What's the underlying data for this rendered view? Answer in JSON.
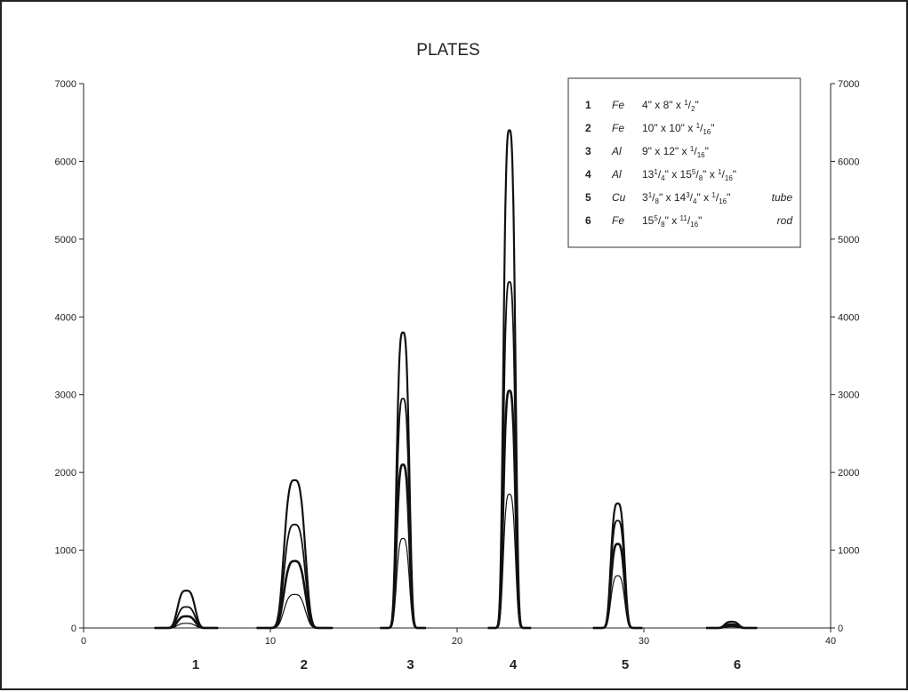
{
  "chart_data": {
    "type": "line",
    "title": "PLATES",
    "xlabel": "",
    "ylabel": "",
    "xlim": [
      0,
      40
    ],
    "ylim": [
      0,
      7000
    ],
    "x_ticks": [
      0,
      10,
      20,
      30,
      40
    ],
    "y_ticks": [
      0,
      1000,
      2000,
      3000,
      4000,
      5000,
      6000,
      7000
    ],
    "y2_ticks": [
      0,
      1000,
      2000,
      3000,
      4000,
      5000,
      6000,
      7000
    ],
    "grid": false,
    "legend_position": "top-right",
    "legend": [
      {
        "num": "1",
        "element": "Fe",
        "desc": [
          [
            "4\" x 8\" x ",
            ""
          ],
          [
            "1",
            "sup"
          ],
          [
            "/",
            ""
          ],
          [
            "2",
            "sub"
          ],
          [
            "\"",
            ""
          ]
        ],
        "extra": ""
      },
      {
        "num": "2",
        "element": "Fe",
        "desc": [
          [
            "10\" x 10\" x ",
            ""
          ],
          [
            "1",
            "sup"
          ],
          [
            "/",
            ""
          ],
          [
            "16",
            "sub"
          ],
          [
            "\"",
            ""
          ]
        ],
        "extra": ""
      },
      {
        "num": "3",
        "element": "Al",
        "desc": [
          [
            "9\" x 12\" x ",
            ""
          ],
          [
            "1",
            "sup"
          ],
          [
            "/",
            ""
          ],
          [
            "16",
            "sub"
          ],
          [
            "\"",
            ""
          ]
        ],
        "extra": ""
      },
      {
        "num": "4",
        "element": "Al",
        "desc": [
          [
            "13",
            ""
          ],
          [
            "1",
            "sup"
          ],
          [
            "/",
            ""
          ],
          [
            "4",
            "sub"
          ],
          [
            "\" x 15",
            ""
          ],
          [
            "5",
            "sup"
          ],
          [
            "/",
            ""
          ],
          [
            "8",
            "sub"
          ],
          [
            "\" x ",
            ""
          ],
          [
            "1",
            "sup"
          ],
          [
            "/",
            ""
          ],
          [
            "16",
            "sub"
          ],
          [
            "\"",
            ""
          ]
        ],
        "extra": ""
      },
      {
        "num": "5",
        "element": "Cu",
        "desc": [
          [
            "3",
            ""
          ],
          [
            "1",
            "sup"
          ],
          [
            "/",
            ""
          ],
          [
            "8",
            "sub"
          ],
          [
            "\" x 14",
            ""
          ],
          [
            "3",
            "sup"
          ],
          [
            "/",
            ""
          ],
          [
            "4",
            "sub"
          ],
          [
            "\" x ",
            ""
          ],
          [
            "1",
            "sup"
          ],
          [
            "/",
            ""
          ],
          [
            "16",
            "sub"
          ],
          [
            "\"",
            ""
          ]
        ],
        "extra": "tube"
      },
      {
        "num": "6",
        "element": "Fe",
        "desc": [
          [
            "15",
            ""
          ],
          [
            "5",
            "sup"
          ],
          [
            "/",
            ""
          ],
          [
            "8",
            "sub"
          ],
          [
            "\" x ",
            ""
          ],
          [
            "11",
            "sup"
          ],
          [
            "/",
            ""
          ],
          [
            "16",
            "sub"
          ],
          [
            "\"",
            ""
          ]
        ],
        "extra": "rod"
      }
    ],
    "categories": [
      {
        "label": "1",
        "x": 6.0
      },
      {
        "label": "2",
        "x": 11.8
      },
      {
        "label": "3",
        "x": 17.5
      },
      {
        "label": "4",
        "x": 23.0
      },
      {
        "label": "5",
        "x": 29.0
      },
      {
        "label": "6",
        "x": 35.0
      }
    ],
    "curves": [
      {
        "center": 5.5,
        "width": 1.0,
        "heights": [
          480,
          270,
          150,
          60
        ]
      },
      {
        "center": 11.3,
        "width": 1.2,
        "heights": [
          1900,
          1330,
          860,
          430
        ]
      },
      {
        "center": 17.1,
        "width": 0.72,
        "heights": [
          3800,
          2950,
          2100,
          1150
        ]
      },
      {
        "center": 22.8,
        "width": 0.68,
        "heights": [
          6400,
          4450,
          3050,
          1720
        ]
      },
      {
        "center": 28.6,
        "width": 0.78,
        "heights": [
          1600,
          1380,
          1080,
          670
        ]
      },
      {
        "center": 34.7,
        "width": 0.8,
        "heights": [
          80,
          50,
          30,
          15
        ]
      }
    ]
  }
}
